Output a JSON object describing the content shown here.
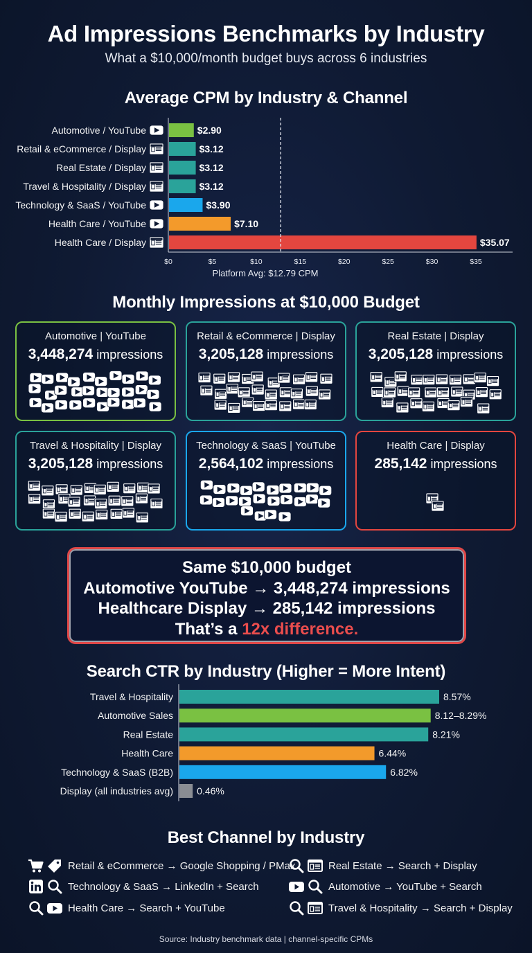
{
  "header": {
    "title": "Ad Impressions Benchmarks by Industry",
    "subtitle": "What a $10,000/month budget buys across 6 industries"
  },
  "colors": {
    "background": "#0f1a33",
    "green": "#7ac142",
    "teal": "#2aa39a",
    "blue": "#1aa7ec",
    "orange": "#f39a2b",
    "red": "#e4463f",
    "gray": "#8a8d93"
  },
  "chart_data": [
    {
      "type": "bar",
      "orientation": "horizontal",
      "title": "Average CPM by Industry & Channel",
      "categories": [
        "Automotive / YouTube",
        "Retail & eCommerce / Display",
        "Real Estate / Display",
        "Travel & Hospitality / Display",
        "Technology & SaaS / YouTube",
        "Health Care / YouTube",
        "Health Care / Display"
      ],
      "channel_icons": [
        "youtube-icon",
        "display-icon",
        "display-icon",
        "display-icon",
        "youtube-icon",
        "youtube-icon",
        "display-icon"
      ],
      "values": [
        2.9,
        3.12,
        3.12,
        3.12,
        3.9,
        7.1,
        35.07
      ],
      "value_labels": [
        "$2.90",
        "$3.12",
        "$3.12",
        "$3.12",
        "$3.90",
        "$7.10",
        "$35.07"
      ],
      "bar_colors": [
        "#7ac142",
        "#2aa39a",
        "#2aa39a",
        "#2aa39a",
        "#1aa7ec",
        "#f39a2b",
        "#e4463f"
      ],
      "xlim": [
        0,
        38
      ],
      "ticks": [
        0,
        5,
        10,
        15,
        20,
        25,
        30,
        35
      ],
      "tick_labels": [
        "$0",
        "$5",
        "$10",
        "$15",
        "$20",
        "$25",
        "$30",
        "$35"
      ],
      "reference_line": {
        "value": 12.79,
        "label": "Platform Avg: $12.79 CPM",
        "style": "dashed"
      }
    },
    {
      "type": "bar",
      "orientation": "horizontal",
      "title": "Search CTR by Industry (Higher = More Intent)",
      "categories": [
        "Travel & Hospitality",
        "Automotive Sales",
        "Real Estate",
        "Health Care",
        "Technology & SaaS (B2B)",
        "Display (all industries avg)"
      ],
      "values": [
        8.57,
        8.29,
        8.21,
        6.44,
        6.82,
        0.46
      ],
      "value_labels": [
        "8.57%",
        "8.12–8.29%",
        "8.21%",
        "6.44%",
        "6.82%",
        "0.46%"
      ],
      "bar_colors": [
        "#2aa39a",
        "#7ac142",
        "#2aa39a",
        "#f39a2b",
        "#1aa7ec",
        "#8a8d93"
      ],
      "xlim": [
        0,
        8.57
      ]
    }
  ],
  "impressions": {
    "title": "Monthly Impressions at $10,000 Budget",
    "unit": "impressions",
    "cards": [
      {
        "label": "Automotive | YouTube",
        "value": "3,448,274",
        "icon": "youtube-icon",
        "color": "#7ac142",
        "icon_count": 30
      },
      {
        "label": "Retail & eCommerce | Display",
        "value": "3,205,128",
        "icon": "display-icon",
        "color": "#2aa39a",
        "icon_count": 28
      },
      {
        "label": "Real Estate | Display",
        "value": "3,205,128",
        "icon": "display-icon",
        "color": "#2aa39a",
        "icon_count": 28
      },
      {
        "label": "Travel & Hospitality | Display",
        "value": "3,205,128",
        "icon": "display-icon",
        "color": "#2aa39a",
        "icon_count": 28
      },
      {
        "label": "Technology & SaaS | YouTube",
        "value": "2,564,102",
        "icon": "youtube-icon",
        "color": "#1aa7ec",
        "icon_count": 24
      },
      {
        "label": "Health Care | Display",
        "value": "285,142",
        "icon": "display-icon",
        "color": "#e4463f",
        "icon_count": 2
      }
    ]
  },
  "highlight": {
    "line1": "Same $10,000 budget",
    "line2": "Automotive YouTube → 3,448,274 impressions",
    "line3": "Healthcare Display → 285,142 impressions",
    "line4_prefix": "That’s a ",
    "line4_emphasis": "12x difference."
  },
  "best_channel": {
    "title": "Best Channel by Industry",
    "items": [
      {
        "icons": [
          "cart-icon",
          "tag-icon"
        ],
        "text": "Retail & eCommerce → Google Shopping / PMax"
      },
      {
        "icons": [
          "search-icon",
          "display-icon"
        ],
        "text": "Real Estate → Search + Display"
      },
      {
        "icons": [
          "linkedin-icon",
          "search-icon"
        ],
        "text": "Technology & SaaS → LinkedIn + Search"
      },
      {
        "icons": [
          "youtube-icon",
          "search-icon"
        ],
        "text": "Automotive → YouTube + Search"
      },
      {
        "icons": [
          "search-icon",
          "youtube-icon"
        ],
        "text": "Health Care → Search + YouTube"
      },
      {
        "icons": [
          "search-icon",
          "display-icon"
        ],
        "text": "Travel & Hospitality → Search + Display"
      }
    ]
  },
  "source": "Source: Industry benchmark data | channel-specific CPMs"
}
